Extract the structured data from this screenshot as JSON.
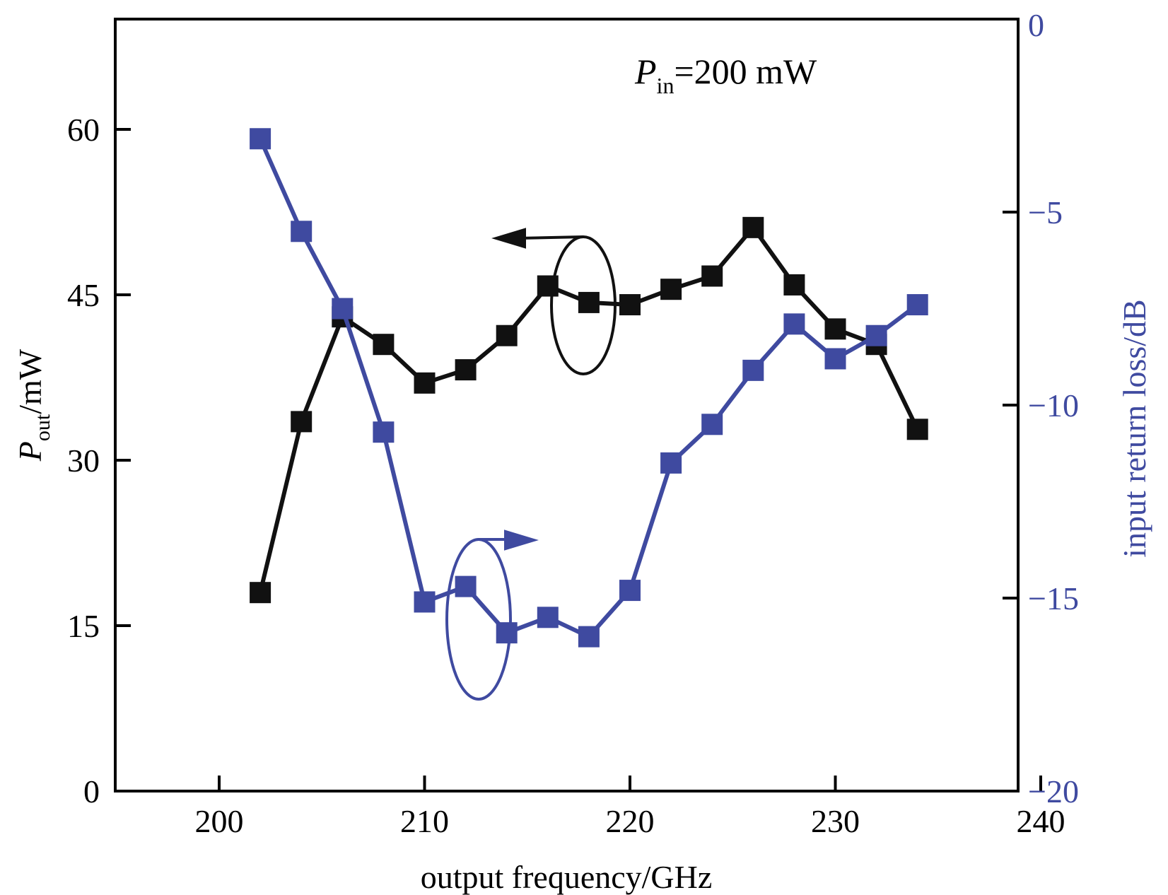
{
  "chart_data": {
    "type": "line",
    "annotation": {
      "symbol": "P",
      "subscript": "in",
      "rest": "=200 mW"
    },
    "xlabel": "output frequency/GHz",
    "ylabel_left": {
      "symbol": "P",
      "subscript": "out",
      "rest": "/mW"
    },
    "ylabel_right": "input return loss/dB",
    "xlim": [
      195,
      240
    ],
    "xticks": [
      "200",
      "210",
      "220",
      "230",
      "240"
    ],
    "ylim_left": [
      0,
      70
    ],
    "yticks_left": [
      "0",
      "15",
      "30",
      "45",
      "60"
    ],
    "ylim_right": [
      -20,
      0
    ],
    "yticks_right": [
      "−20",
      "−15",
      "−10",
      "−5",
      "0"
    ],
    "grid": false,
    "colors": {
      "left_series": "#111111",
      "right_series": "#3f4aa0",
      "right_axis_text": "#3f4aa0"
    },
    "series": [
      {
        "axis": "left",
        "marker": "square",
        "x": [
          202,
          204,
          206,
          208,
          210,
          212,
          214,
          216,
          218,
          220,
          222,
          224,
          226,
          228,
          230,
          232,
          234
        ],
        "values": [
          18,
          33.5,
          43,
          40.5,
          37,
          38.2,
          41.3,
          45.8,
          44.3,
          44.1,
          45.5,
          46.7,
          51.1,
          45.9,
          41.9,
          40.5,
          32.8
        ]
      },
      {
        "axis": "right",
        "marker": "square",
        "x": [
          202,
          204,
          206,
          208,
          210,
          212,
          214,
          216,
          218,
          220,
          222,
          224,
          226,
          228,
          230,
          232,
          234
        ],
        "values": [
          -3.1,
          -5.5,
          -7.5,
          -10.7,
          -15.1,
          -14.7,
          -15.9,
          -15.5,
          -16.0,
          -14.8,
          -11.5,
          -10.5,
          -9.1,
          -7.9,
          -8.8,
          -8.2,
          -7.4
        ]
      }
    ]
  }
}
